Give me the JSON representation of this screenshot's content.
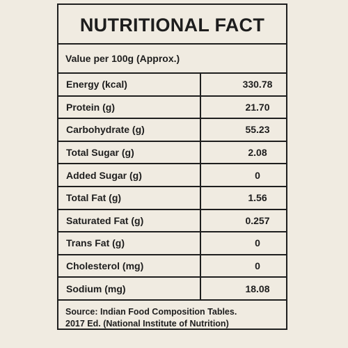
{
  "title": "NUTRITIONAL FACT",
  "subheading": "Value per 100g (Approx.)",
  "nutrients": [
    {
      "name": "Energy (kcal)",
      "value": "330.78"
    },
    {
      "name": "Protein (g)",
      "value": "21.70"
    },
    {
      "name": "Carbohydrate (g)",
      "value": "55.23"
    },
    {
      "name": "Total Sugar (g)",
      "value": "2.08"
    },
    {
      "name": "Added Sugar (g)",
      "value": "0"
    },
    {
      "name": "Total Fat (g)",
      "value": "1.56"
    },
    {
      "name": "Saturated Fat (g)",
      "value": "0.257"
    },
    {
      "name": "Trans Fat (g)",
      "value": "0"
    },
    {
      "name": "Cholesterol (mg)",
      "value": "0"
    },
    {
      "name": "Sodium (mg)",
      "value": "18.08"
    }
  ],
  "source": {
    "line1": "Source: Indian Food Composition Tables.",
    "line2": "2017 Ed. (National Institute of Nutrition)"
  }
}
